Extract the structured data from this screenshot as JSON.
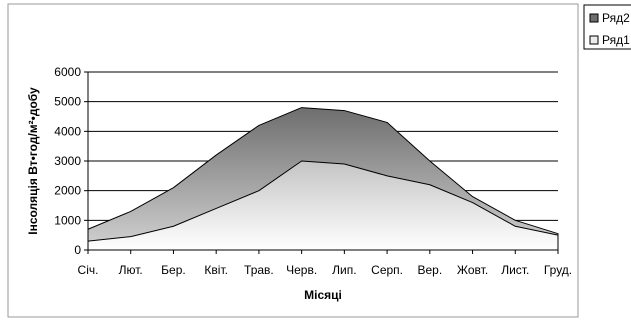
{
  "chart_data": {
    "type": "area",
    "stacked": false,
    "title": "",
    "xlabel": "Місяці",
    "ylabel": "Інсоляція Вт•год/м²•добу",
    "categories": [
      "Січ.",
      "Лют.",
      "Бер.",
      "Квіт.",
      "Трав.",
      "Черв.",
      "Лип.",
      "Серп.",
      "Вер.",
      "Жовт.",
      "Лист.",
      "Груд."
    ],
    "ylim": [
      0,
      6000
    ],
    "yticks": [
      0,
      1000,
      2000,
      3000,
      4000,
      5000,
      6000
    ],
    "grid": true,
    "legend_position": "top-right",
    "series": [
      {
        "name": "Ряд2",
        "values": [
          700,
          1300,
          2100,
          3200,
          4200,
          4800,
          4700,
          4300,
          3000,
          1800,
          1000,
          550
        ],
        "color_top": "#6e6e6e",
        "color_bottom": "#d2d2d2"
      },
      {
        "name": "Ряд1",
        "values": [
          300,
          450,
          800,
          1400,
          2000,
          3000,
          2900,
          2500,
          2200,
          1600,
          800,
          500
        ],
        "color_top": "#c4c4c4",
        "color_bottom": "#ffffff"
      }
    ]
  }
}
